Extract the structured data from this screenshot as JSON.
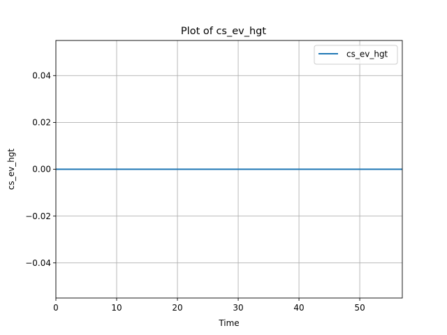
{
  "chart_data": {
    "type": "line",
    "title": "Plot of cs_ev_hgt",
    "xlabel": "Time",
    "ylabel": "cs_ev_hgt",
    "xlim": [
      0,
      57
    ],
    "ylim": [
      -0.055,
      0.055
    ],
    "xticks": [
      0,
      10,
      20,
      30,
      40,
      50
    ],
    "yticks": [
      -0.04,
      -0.02,
      0.0,
      0.02,
      0.04
    ],
    "ytick_labels": [
      "−0.04",
      "−0.02",
      "0.00",
      "0.02",
      "0.04"
    ],
    "grid": true,
    "legend_position": "top-right",
    "series": [
      {
        "name": "cs_ev_hgt",
        "color": "#1f77b4",
        "x": [
          0,
          57
        ],
        "y": [
          0,
          0
        ]
      }
    ]
  }
}
